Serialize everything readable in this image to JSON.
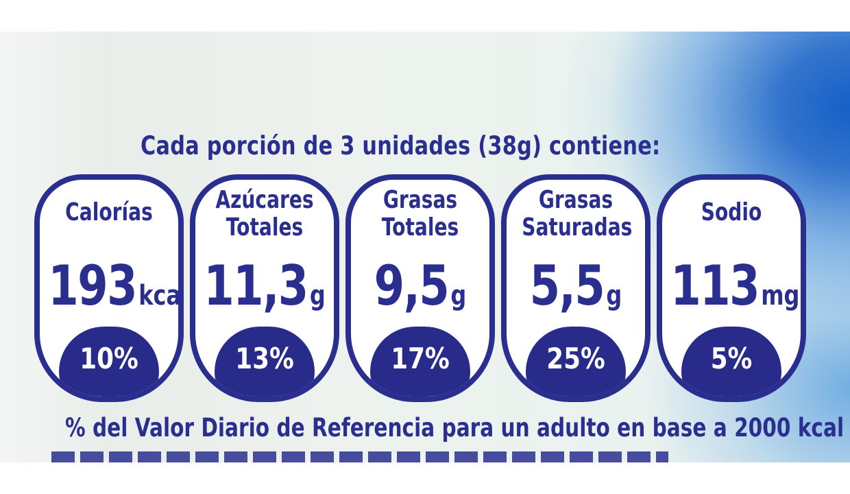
{
  "intro_text": "Cada porción de 3 unidades (38g) contiene:",
  "seals": [
    {
      "label_lines": [
        "Calorías"
      ],
      "value": "193",
      "unit": "kcal",
      "percent": "10%"
    },
    {
      "label_lines": [
        "Azúcares",
        "Totales"
      ],
      "value": "11,3",
      "unit": "g",
      "percent": "13%"
    },
    {
      "label_lines": [
        "Grasas",
        "Totales"
      ],
      "value": "9,5",
      "unit": "g",
      "percent": "17%"
    },
    {
      "label_lines": [
        "Grasas",
        "Saturadas"
      ],
      "value": "5,5",
      "unit": "g",
      "percent": "25%"
    },
    {
      "label_lines": [
        "Sodio"
      ],
      "value": "113",
      "unit": "mg",
      "percent": "5%"
    }
  ],
  "footer_text": "% del Valor Diario de Referencia para un adulto en base a 2000 kcal",
  "colors": {
    "ink": "#2a2f8f",
    "badge_fill": "#282b8a",
    "background": "#eaf0ec",
    "accent_blue": "#1560c7"
  }
}
